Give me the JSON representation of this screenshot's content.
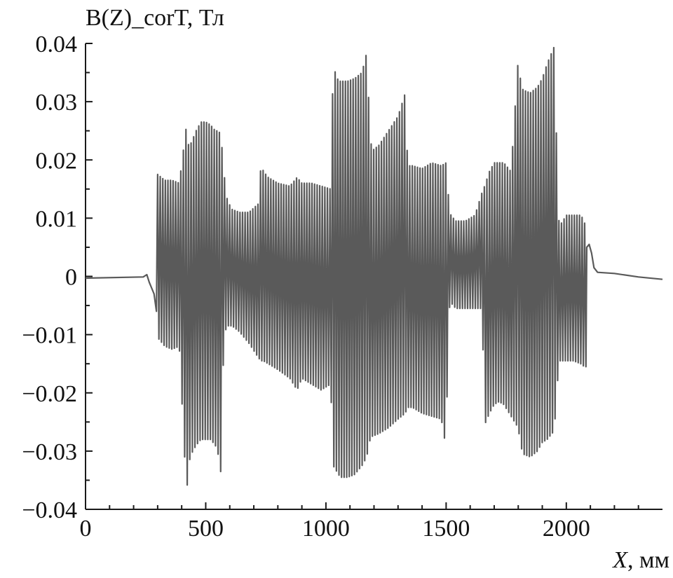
{
  "chart_data": {
    "type": "line",
    "title": "",
    "ylabel": "B(Z)_corT, Тл",
    "xlabel_italic": "X",
    "xlabel_unit": ", мм",
    "xlim": [
      0,
      2400
    ],
    "ylim": [
      -0.04,
      0.04
    ],
    "x_ticks": [
      0,
      500,
      1000,
      1500,
      2000
    ],
    "x_tick_labels": [
      "0",
      "500",
      "1000",
      "1500",
      "2000"
    ],
    "y_ticks": [
      0.04,
      0.03,
      0.02,
      0.01,
      0,
      -0.01,
      -0.02,
      -0.03,
      -0.04
    ],
    "y_tick_labels": [
      "0.04",
      "0.03",
      "0.02",
      "0.01",
      "0",
      "−0.01",
      "−0.02",
      "−0.03",
      "−0.04"
    ],
    "grid": false,
    "line_color": "#5a5a5a",
    "series": [
      {
        "name": "",
        "flat_start": [
          [
            0,
            -0.0003
          ],
          [
            240,
            -0.0001
          ],
          [
            255,
            0.0003
          ],
          [
            265,
            -0.001
          ],
          [
            275,
            -0.002
          ],
          [
            285,
            -0.003
          ],
          [
            295,
            -0.006
          ]
        ],
        "oscillation_region": [
          300,
          2085
        ],
        "period_mm": 10.7,
        "envelope": {
          "x": [
            300,
            330,
            360,
            390,
            420,
            430,
            440,
            460,
            480,
            500,
            520,
            540,
            555,
            565,
            575,
            590,
            610,
            640,
            680,
            720,
            730,
            740,
            760,
            800,
            850,
            880,
            900,
            940,
            980,
            1020,
            1030,
            1045,
            1060,
            1090,
            1120,
            1150,
            1170,
            1180,
            1190,
            1220,
            1260,
            1300,
            1330,
            1340,
            1360,
            1400,
            1440,
            1480,
            1500,
            1510,
            1520,
            1540,
            1580,
            1620,
            1650,
            1660,
            1680,
            1700,
            1720,
            1740,
            1770,
            1800,
            1810,
            1820,
            1850,
            1880,
            1900,
            1920,
            1950,
            1960,
            1970,
            2000,
            2030,
            2060,
            2075,
            2085
          ],
          "max": [
            0.0175,
            0.0165,
            0.0165,
            0.016,
            0.026,
            0.022,
            0.023,
            0.025,
            0.0265,
            0.0265,
            0.026,
            0.025,
            0.025,
            0.0235,
            0.018,
            0.013,
            0.0115,
            0.011,
            0.011,
            0.0125,
            0.0195,
            0.018,
            0.017,
            0.016,
            0.0155,
            0.017,
            0.016,
            0.016,
            0.0155,
            0.015,
            0.0365,
            0.034,
            0.0335,
            0.0335,
            0.034,
            0.035,
            0.0385,
            0.028,
            0.0215,
            0.0225,
            0.025,
            0.0275,
            0.0315,
            0.019,
            0.019,
            0.0185,
            0.0195,
            0.019,
            0.0195,
            0.0135,
            0.0105,
            0.0095,
            0.0095,
            0.0105,
            0.0145,
            0.0155,
            0.018,
            0.0195,
            0.0195,
            0.0195,
            0.018,
            0.0375,
            0.0335,
            0.032,
            0.0315,
            0.0325,
            0.034,
            0.0365,
            0.0395,
            0.022,
            0.0085,
            0.0105,
            0.0105,
            0.0105,
            0.0095,
            0.0065
          ],
          "min": [
            -0.0105,
            -0.012,
            -0.0125,
            -0.012,
            -0.0375,
            -0.032,
            -0.0305,
            -0.029,
            -0.028,
            -0.028,
            -0.028,
            -0.029,
            -0.031,
            -0.0345,
            -0.01,
            -0.0085,
            -0.0085,
            -0.0095,
            -0.0115,
            -0.014,
            -0.0145,
            -0.0145,
            -0.015,
            -0.016,
            -0.0175,
            -0.0195,
            -0.0175,
            -0.0185,
            -0.0195,
            -0.0185,
            -0.0325,
            -0.0335,
            -0.0345,
            -0.0345,
            -0.034,
            -0.0325,
            -0.031,
            -0.0285,
            -0.0275,
            -0.027,
            -0.026,
            -0.0245,
            -0.0235,
            -0.0225,
            -0.0225,
            -0.0235,
            -0.024,
            -0.0245,
            -0.0295,
            -0.006,
            -0.0045,
            -0.0055,
            -0.0055,
            -0.0055,
            -0.0055,
            -0.0255,
            -0.0235,
            -0.022,
            -0.0215,
            -0.022,
            -0.024,
            -0.026,
            -0.029,
            -0.0305,
            -0.031,
            -0.03,
            -0.0285,
            -0.028,
            -0.0265,
            -0.02,
            -0.0145,
            -0.0145,
            -0.0145,
            -0.015,
            -0.0155,
            -0.0155
          ]
        },
        "flat_end": [
          [
            2085,
            0.005
          ],
          [
            2095,
            0.0055
          ],
          [
            2105,
            0.004
          ],
          [
            2115,
            0.0015
          ],
          [
            2130,
            0.0007
          ],
          [
            2200,
            0.0005
          ],
          [
            2300,
            -0.0001
          ],
          [
            2400,
            -0.0005
          ]
        ]
      }
    ]
  }
}
